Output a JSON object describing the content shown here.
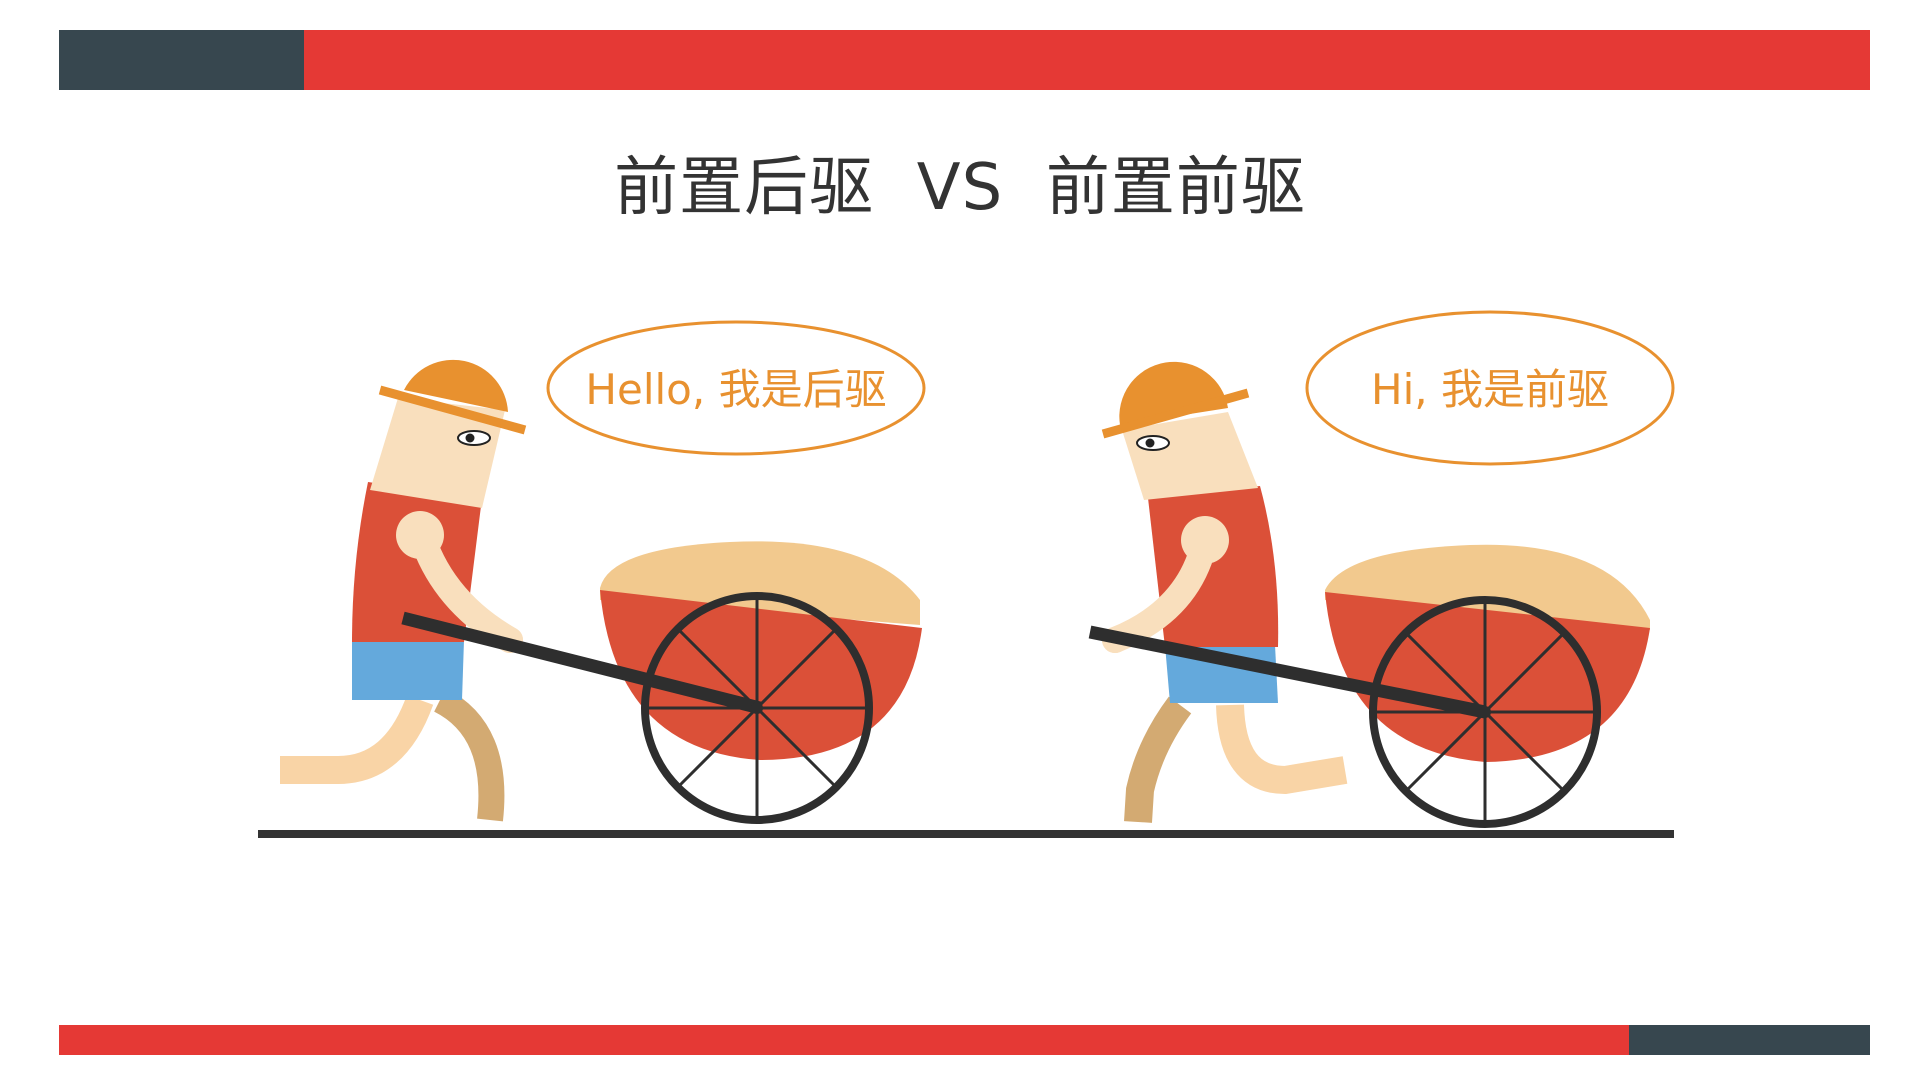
{
  "slide": {
    "title": "前置后驱  VS  前置前驱",
    "left_speech": "Hello, 我是后驱",
    "right_speech": "Hi, 我是前驱"
  },
  "colors": {
    "accent_red": "#e53935",
    "dark_slate": "#37474f",
    "bubble_orange": "#e8912f",
    "helmet": "#e8912f",
    "skin": "#f9dfbd",
    "shirt": "#db5038",
    "shorts": "#64a9dc",
    "leg_dark": "#d3aa72",
    "cart_red": "#db5038",
    "sand": "#f2c98e",
    "wheel": "#2e2e2e",
    "ground": "#333333"
  },
  "icons": {
    "left_figure": "worker-pushing-cart-icon",
    "right_figure": "worker-pulling-cart-icon"
  }
}
